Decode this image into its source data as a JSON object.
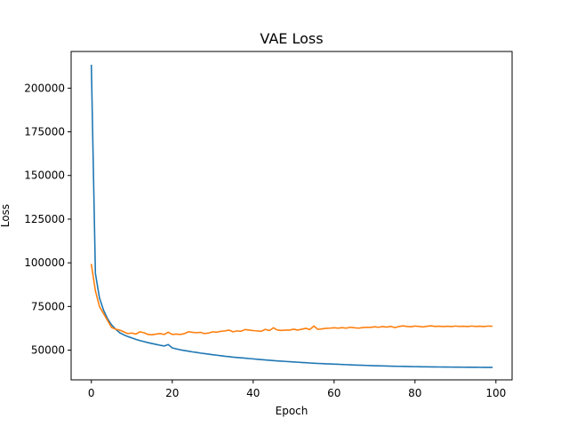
{
  "chart_data": {
    "type": "line",
    "title": "VAE Loss",
    "xlabel": "Epoch",
    "ylabel": "Loss",
    "xlim": [
      -5,
      104
    ],
    "ylim": [
      33000,
      221000
    ],
    "xticks": [
      0,
      20,
      40,
      60,
      80,
      100
    ],
    "yticks": [
      50000,
      75000,
      100000,
      125000,
      150000,
      175000,
      200000
    ],
    "xtick_labels": [
      "0",
      "20",
      "40",
      "60",
      "80",
      "100"
    ],
    "ytick_labels": [
      "50000",
      "75000",
      "100000",
      "125000",
      "150000",
      "175000",
      "200000"
    ],
    "grid": false,
    "series": [
      {
        "color": "#1f77b4",
        "x": [
          0,
          1,
          2,
          3,
          4,
          5,
          6,
          7,
          8,
          9,
          10,
          11,
          12,
          13,
          14,
          15,
          16,
          17,
          18,
          19,
          20,
          21,
          22,
          23,
          24,
          25,
          26,
          27,
          28,
          29,
          30,
          31,
          32,
          33,
          34,
          35,
          36,
          37,
          38,
          39,
          40,
          41,
          42,
          43,
          44,
          45,
          46,
          47,
          48,
          49,
          50,
          51,
          52,
          53,
          54,
          55,
          56,
          57,
          58,
          59,
          60,
          61,
          62,
          63,
          64,
          65,
          66,
          67,
          68,
          69,
          70,
          71,
          72,
          73,
          74,
          75,
          76,
          77,
          78,
          79,
          80,
          81,
          82,
          83,
          84,
          85,
          86,
          87,
          88,
          89,
          90,
          91,
          92,
          93,
          94,
          95,
          96,
          97,
          98,
          99
        ],
        "y": [
          213000,
          94000,
          80000,
          73000,
          68000,
          64500,
          62000,
          60000,
          58800,
          57800,
          57000,
          56200,
          55500,
          54900,
          54300,
          53800,
          53300,
          52800,
          52400,
          53200,
          51300,
          50700,
          50200,
          49800,
          49400,
          49000,
          48700,
          48300,
          48000,
          47700,
          47400,
          47100,
          46800,
          46500,
          46300,
          46000,
          45800,
          45600,
          45400,
          45200,
          45000,
          44800,
          44600,
          44400,
          44200,
          44000,
          43850,
          43700,
          43550,
          43400,
          43250,
          43100,
          42950,
          42800,
          42650,
          42500,
          42400,
          42300,
          42200,
          42100,
          42000,
          41900,
          41800,
          41700,
          41600,
          41500,
          41420,
          41340,
          41260,
          41180,
          41100,
          41040,
          40980,
          40920,
          40860,
          40800,
          40750,
          40700,
          40650,
          40600,
          40560,
          40520,
          40480,
          40440,
          40400,
          40380,
          40360,
          40340,
          40320,
          40300,
          40280,
          40260,
          40240,
          40220,
          40200,
          40190,
          40180,
          40170,
          40160,
          40150
        ]
      },
      {
        "color": "#ff7f0e",
        "x": [
          0,
          1,
          2,
          3,
          4,
          5,
          6,
          7,
          8,
          9,
          10,
          11,
          12,
          13,
          14,
          15,
          16,
          17,
          18,
          19,
          20,
          21,
          22,
          23,
          24,
          25,
          26,
          27,
          28,
          29,
          30,
          31,
          32,
          33,
          34,
          35,
          36,
          37,
          38,
          39,
          40,
          41,
          42,
          43,
          44,
          45,
          46,
          47,
          48,
          49,
          50,
          51,
          52,
          53,
          54,
          55,
          56,
          57,
          58,
          59,
          60,
          61,
          62,
          63,
          64,
          65,
          66,
          67,
          68,
          69,
          70,
          71,
          72,
          73,
          74,
          75,
          76,
          77,
          78,
          79,
          80,
          81,
          82,
          83,
          84,
          85,
          86,
          87,
          88,
          89,
          90,
          91,
          92,
          93,
          94,
          95,
          96,
          97,
          98,
          99
        ],
        "y": [
          99000,
          84000,
          75000,
          71000,
          67000,
          63000,
          62000,
          61500,
          60500,
          59500,
          59800,
          59200,
          60500,
          60000,
          59000,
          58800,
          59200,
          59500,
          59000,
          60300,
          59000,
          59200,
          59000,
          59500,
          60500,
          60200,
          60000,
          60200,
          59500,
          59800,
          60500,
          60300,
          60800,
          61000,
          61500,
          60500,
          61000,
          60800,
          61800,
          61500,
          61200,
          61000,
          60800,
          61900,
          61200,
          62800,
          61500,
          61300,
          61500,
          61500,
          62000,
          61500,
          62000,
          62500,
          61800,
          63800,
          61900,
          62200,
          62500,
          62600,
          62800,
          62600,
          62900,
          62600,
          63100,
          62800,
          62600,
          62900,
          63100,
          63000,
          63400,
          63100,
          63500,
          63200,
          63600,
          62900,
          63500,
          63900,
          63600,
          63400,
          63800,
          63600,
          63300,
          63700,
          63900,
          63600,
          63700,
          63500,
          63700,
          63500,
          63800,
          63600,
          63700,
          63500,
          63800,
          63600,
          63700,
          63500,
          63800,
          63700
        ]
      }
    ]
  }
}
